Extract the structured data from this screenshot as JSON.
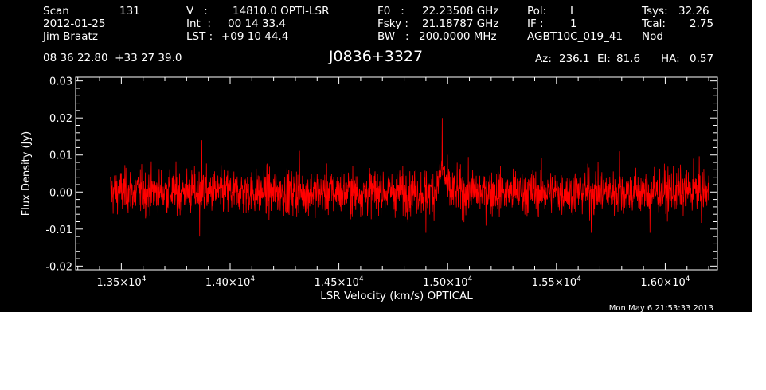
{
  "header": {
    "col1": {
      "scan_label": "Scan",
      "scan_value": "131",
      "date": "2012-01-25",
      "observer": "Jim Braatz",
      "coords": "08 36 22.80  +33 27 39.0"
    },
    "col2": {
      "v_label": "V   :",
      "v_value": "14810.0 OPTI-LSR",
      "int_label": "Int  :",
      "int_value": "00 14 33.4",
      "lst_label": "LST :",
      "lst_value": "+09 10 44.4"
    },
    "col3": {
      "f0_label": "F0   :",
      "f0_value": "22.23508 GHz",
      "fsky_label": "Fsky :",
      "fsky_value": "21.18787 GHz",
      "bw_label": "BW   :",
      "bw_value": "200.0000 MHz"
    },
    "col4": {
      "pol_label": "Pol:",
      "pol_value": "I",
      "if_label": "IF :",
      "if_value": "1",
      "project": "AGBT10C_019_41"
    },
    "col5": {
      "tsys_label": "Tsys:",
      "tsys_value": "32.26",
      "tcal_label": "Tcal:",
      "tcal_value": "2.75",
      "mode": "Nod"
    },
    "source": "J0836+3327",
    "pointing": {
      "az_label": "Az:",
      "az_value": "236.1",
      "el_label": "El:",
      "el_value": "81.6",
      "ha_label": "HA:",
      "ha_value": "0.57"
    },
    "timestamp": "Mon May  6 21:53:33 2013"
  },
  "colors": {
    "background": "#000000",
    "foreground": "#ffffff",
    "series": "#ff0000"
  },
  "chart_data": {
    "type": "line",
    "xlabel": "LSR Velocity (km/s) OPTICAL",
    "ylabel": "Flux Density (Jy)",
    "xlim": [
      13290,
      16240
    ],
    "ylim": [
      -0.021,
      0.031
    ],
    "x_ticks": [
      {
        "value": 13500,
        "mantissa": "1.35",
        "exponent": "4"
      },
      {
        "value": 14000,
        "mantissa": "1.40",
        "exponent": "4"
      },
      {
        "value": 14500,
        "mantissa": "1.45",
        "exponent": "4"
      },
      {
        "value": 15000,
        "mantissa": "1.50",
        "exponent": "4"
      },
      {
        "value": 15500,
        "mantissa": "1.55",
        "exponent": "4"
      },
      {
        "value": 16000,
        "mantissa": "1.60",
        "exponent": "4"
      }
    ],
    "y_ticks": [
      {
        "value": 0.03,
        "label": "0.03"
      },
      {
        "value": 0.02,
        "label": "0.02"
      },
      {
        "value": 0.01,
        "label": "0.01"
      },
      {
        "value": 0.0,
        "label": "0.00"
      },
      {
        "value": -0.01,
        "label": "-0.01"
      },
      {
        "value": -0.02,
        "label": "-0.02"
      }
    ],
    "series": [
      {
        "color": "#ff0000",
        "x_start": 13450,
        "x_end": 16200,
        "noise_rms": 0.004,
        "peak": {
          "x": 14975,
          "y": 0.02
        },
        "notable_spikes": [
          {
            "x": 14318,
            "y": 0.011
          },
          {
            "x": 13870,
            "y": 0.014
          },
          {
            "x": 15790,
            "y": 0.011
          },
          {
            "x": 16130,
            "y": 0.009
          },
          {
            "x": 13860,
            "y": -0.012
          },
          {
            "x": 14900,
            "y": -0.011
          },
          {
            "x": 15660,
            "y": -0.011
          },
          {
            "x": 15930,
            "y": -0.011
          }
        ]
      }
    ]
  }
}
